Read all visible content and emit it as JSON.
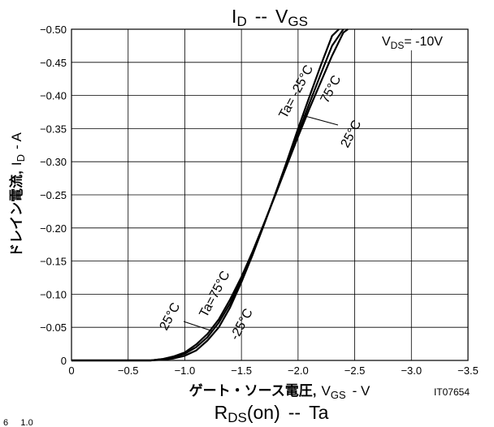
{
  "chart_data": {
    "type": "line",
    "title": {
      "main": "I",
      "main_sub": "D",
      "sep": "--",
      "right": "V",
      "right_sub": "GS"
    },
    "condition": {
      "prefix": "V",
      "sub": "DS",
      "suffix": "= -10V"
    },
    "y_axis": {
      "label": {
        "main": "ドレイン電流,",
        "sym": "I",
        "sub": "D",
        "unit": "- A"
      },
      "ticks": [
        {
          "value": -0.5,
          "label": "−0.50"
        },
        {
          "value": -0.45,
          "label": "−0.45"
        },
        {
          "value": -0.4,
          "label": "−0.40"
        },
        {
          "value": -0.35,
          "label": "−0.35"
        },
        {
          "value": -0.3,
          "label": "−0.30"
        },
        {
          "value": -0.25,
          "label": "−0.25"
        },
        {
          "value": -0.2,
          "label": "−0.20"
        },
        {
          "value": -0.15,
          "label": "−0.15"
        },
        {
          "value": -0.1,
          "label": "−0.10"
        },
        {
          "value": -0.05,
          "label": "−0.05"
        },
        {
          "value": 0,
          "label": "0"
        }
      ],
      "ylim": [
        0,
        -0.5
      ]
    },
    "x_axis": {
      "label": {
        "main": "ゲート・ソース電圧,",
        "sym": "V",
        "sub": "GS",
        "unit": "- V"
      },
      "ticks": [
        {
          "value": 0,
          "label": "0"
        },
        {
          "value": -0.5,
          "label": "−0.5"
        },
        {
          "value": -1.0,
          "label": "−1.0"
        },
        {
          "value": -1.5,
          "label": "−1.5"
        },
        {
          "value": -2.0,
          "label": "−2.0"
        },
        {
          "value": -2.5,
          "label": "−2.5"
        },
        {
          "value": -3.0,
          "label": "−3.0"
        },
        {
          "value": -3.5,
          "label": "−3.5"
        }
      ],
      "xlim": [
        0,
        -3.5
      ]
    },
    "grid": true,
    "series": [
      {
        "name": "Ta=-25°C",
        "x": [
          0,
          -0.7,
          -0.8,
          -0.9,
          -1.0,
          -1.1,
          -1.2,
          -1.3,
          -1.4,
          -1.5,
          -1.6,
          -1.7,
          -1.8,
          -1.9,
          -2.0,
          -2.1,
          -2.2,
          -2.3,
          -2.36
        ],
        "y": [
          0,
          0,
          -0.001,
          -0.003,
          -0.007,
          -0.015,
          -0.03,
          -0.05,
          -0.08,
          -0.118,
          -0.16,
          -0.205,
          -0.252,
          -0.3,
          -0.35,
          -0.398,
          -0.445,
          -0.49,
          -0.5
        ]
      },
      {
        "name": "Ta=25°C",
        "x": [
          0,
          -0.7,
          -0.8,
          -0.9,
          -1.0,
          -1.1,
          -1.2,
          -1.3,
          -1.4,
          -1.5,
          -1.6,
          -1.7,
          -1.8,
          -1.9,
          -2.0,
          -2.1,
          -2.2,
          -2.3,
          -2.4,
          -2.44
        ],
        "y": [
          0,
          0,
          -0.002,
          -0.006,
          -0.012,
          -0.024,
          -0.04,
          -0.062,
          -0.092,
          -0.126,
          -0.165,
          -0.207,
          -0.25,
          -0.294,
          -0.338,
          -0.38,
          -0.42,
          -0.46,
          -0.495,
          -0.5
        ]
      },
      {
        "name": "Ta=75°C",
        "x": [
          0,
          -0.7,
          -0.8,
          -0.9,
          -1.0,
          -1.1,
          -1.2,
          -1.3,
          -1.4,
          -1.5,
          -1.6,
          -1.7,
          -1.8,
          -1.9,
          -2.0,
          -2.1,
          -2.2,
          -2.3,
          -2.4
        ],
        "y": [
          0,
          0,
          -0.002,
          -0.005,
          -0.01,
          -0.02,
          -0.035,
          -0.057,
          -0.086,
          -0.122,
          -0.162,
          -0.206,
          -0.251,
          -0.297,
          -0.343,
          -0.388,
          -0.432,
          -0.475,
          -0.5
        ]
      }
    ],
    "annotations": {
      "top": [
        "Ta= -25°C",
        "75°C",
        "25°C"
      ],
      "bottom": [
        "25°C",
        "Ta=75°C",
        "-25°C"
      ]
    },
    "figure_code": "IT07654",
    "next_title": {
      "main": "R",
      "sub": "DS",
      "paren": "(on)",
      "sep": "--",
      "right": "Ta"
    },
    "fragment": "6     1.0"
  }
}
